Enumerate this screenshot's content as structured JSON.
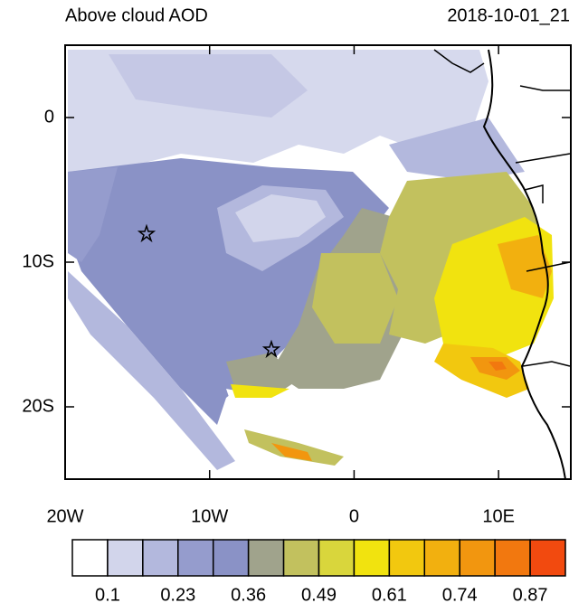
{
  "title": "Above cloud AOD",
  "date": "2018-10-01_21",
  "map": {
    "xlim": [
      -20,
      15
    ],
    "ylim": [
      -25,
      5
    ],
    "xticks": [
      {
        "value": -20,
        "label": "20W"
      },
      {
        "value": -10,
        "label": "10W"
      },
      0,
      {
        "value": 10,
        "label": "10E"
      }
    ],
    "yticks": [
      0,
      {
        "value": -10,
        "label": "10S"
      },
      {
        "value": -20,
        "label": "20S"
      }
    ]
  },
  "colorbar": {
    "colors": [
      "#ffffff",
      "#d2d5eb",
      "#b3b8dd",
      "#959ccd",
      "#8a92c6",
      "#a0a38c",
      "#c2c15e",
      "#d9d63c",
      "#f1e30f",
      "#f2c80f",
      "#f2b00f",
      "#f2960f",
      "#f2780f",
      "#f24a0f"
    ],
    "labels": [
      0.1,
      0.23,
      0.36,
      0.49,
      0.61,
      0.74,
      0.87
    ]
  }
}
